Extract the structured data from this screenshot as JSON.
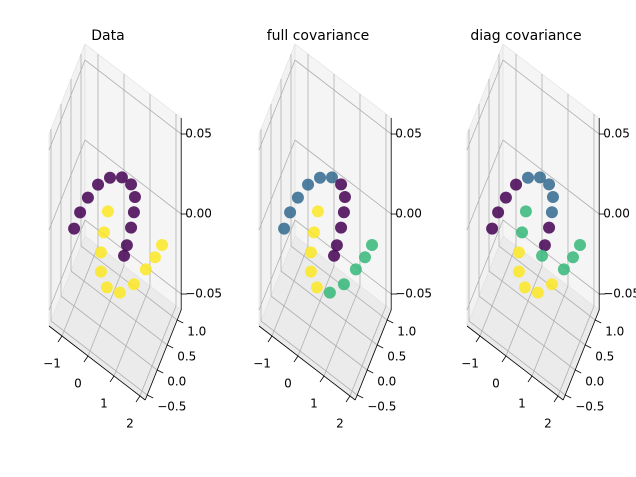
{
  "chart_data": [
    {
      "type": "scatter3d",
      "title": "Data",
      "xlim": [
        -1.5,
        2.2
      ],
      "ylim": [
        -0.6,
        1.2
      ],
      "zlim": [
        -0.06,
        0.06
      ],
      "xticks": [
        {
          "value": -1,
          "label": "−1"
        },
        0,
        1,
        2
      ],
      "yticks": [
        {
          "value": -0.5,
          "label": "−0.5"
        },
        {
          "value": 0,
          "label": "0.0"
        },
        0.5,
        {
          "value": 1,
          "label": "1.0"
        }
      ],
      "zticks": [
        {
          "value": -0.05,
          "label": "−0.05"
        },
        {
          "value": 0,
          "label": "0.00"
        },
        0.05
      ],
      "grid": true,
      "series": [
        {
          "color": "#440154",
          "x": [
            -1.38,
            -1.15,
            -0.85,
            -0.46,
            0,
            0.46,
            0.81,
            0.96,
            0.92,
            0.81,
            0.65,
            0.54
          ],
          "y": [
            0.5,
            0.5,
            0.5,
            0.5,
            0.5,
            0.5,
            0.5,
            0.5,
            0.5,
            0.5,
            0.5,
            0.5
          ],
          "z": [
            -0.032,
            -0.019,
            -0.006,
            0.007,
            0.017,
            0.023,
            0.023,
            0.017,
            0.007,
            -0.004,
            -0.017,
            -0.025
          ]
        },
        {
          "color": "#fde725",
          "x": [
            -0.08,
            -0.23,
            -0.35,
            -0.35,
            -0.12,
            0.38,
            0.92,
            1.38,
            1.73,
            2.0
          ],
          "y": [
            0.5,
            0.5,
            0.5,
            0.5,
            0.5,
            0.5,
            0.5,
            0.5,
            0.5,
            0.5
          ],
          "z": [
            -0.005,
            -0.02,
            -0.034,
            -0.046,
            -0.053,
            -0.05,
            -0.038,
            -0.023,
            -0.011,
            0
          ]
        }
      ]
    },
    {
      "type": "scatter3d",
      "title": "full covariance",
      "xlim": [
        -1.5,
        2.2
      ],
      "ylim": [
        -0.6,
        1.2
      ],
      "zlim": [
        -0.06,
        0.06
      ],
      "xticks": [
        {
          "value": -1,
          "label": "−1"
        },
        0,
        1,
        2
      ],
      "yticks": [
        {
          "value": -0.5,
          "label": "−0.5"
        },
        {
          "value": 0,
          "label": "0.0"
        },
        0.5,
        {
          "value": 1,
          "label": "1.0"
        }
      ],
      "zticks": [
        {
          "value": -0.05,
          "label": "−0.05"
        },
        {
          "value": 0,
          "label": "0.00"
        },
        0.05
      ],
      "grid": true,
      "series": [
        {
          "color": "#31688e",
          "x": [
            -1.38,
            -1.15,
            -0.85,
            -0.46,
            0,
            0.46
          ],
          "y": [
            0.5,
            0.5,
            0.5,
            0.5,
            0.5,
            0.5
          ],
          "z": [
            -0.032,
            -0.019,
            -0.006,
            0.007,
            0.017,
            0.023
          ]
        },
        {
          "color": "#440154",
          "x": [
            0.81,
            0.96,
            0.92,
            0.81,
            0.65,
            0.54
          ],
          "y": [
            0.5,
            0.5,
            0.5,
            0.5,
            0.5,
            0.5
          ],
          "z": [
            0.023,
            0.017,
            0.007,
            -0.004,
            -0.017,
            -0.025
          ]
        },
        {
          "color": "#fde725",
          "x": [
            -0.08,
            -0.23,
            -0.35,
            -0.35,
            -0.12
          ],
          "y": [
            0.5,
            0.5,
            0.5,
            0.5,
            0.5
          ],
          "z": [
            -0.005,
            -0.02,
            -0.034,
            -0.046,
            -0.053
          ]
        },
        {
          "color": "#35b779",
          "x": [
            0.38,
            0.92,
            1.38,
            1.73,
            2.0
          ],
          "y": [
            0.5,
            0.5,
            0.5,
            0.5,
            0.5
          ],
          "z": [
            -0.05,
            -0.038,
            -0.023,
            -0.011,
            0
          ]
        }
      ]
    },
    {
      "type": "scatter3d",
      "title": "diag covariance",
      "xlim": [
        -1.5,
        2.2
      ],
      "ylim": [
        -0.6,
        1.2
      ],
      "zlim": [
        -0.06,
        0.06
      ],
      "xticks": [
        {
          "value": -1,
          "label": "−1"
        },
        0,
        1,
        2
      ],
      "yticks": [
        {
          "value": -0.5,
          "label": "−0.5"
        },
        {
          "value": 0,
          "label": "0.0"
        },
        0.5,
        {
          "value": 1,
          "label": "1.0"
        }
      ],
      "zticks": [
        {
          "value": -0.05,
          "label": "−0.05"
        },
        {
          "value": 0,
          "label": "0.00"
        },
        0.05
      ],
      "grid": true,
      "series": [
        {
          "color": "#440154",
          "x": [
            -1.38,
            -1.15,
            -0.85,
            -0.46,
            0.81,
            0.65
          ],
          "y": [
            0.5,
            0.5,
            0.5,
            0.5,
            0.5,
            0.5
          ],
          "z": [
            -0.032,
            -0.019,
            -0.006,
            0.007,
            -0.004,
            -0.017
          ]
        },
        {
          "color": "#31688e",
          "x": [
            0,
            0.46,
            0.81,
            0.96,
            0.92
          ],
          "y": [
            0.5,
            0.5,
            0.5,
            0.5,
            0.5
          ],
          "z": [
            0.017,
            0.023,
            0.023,
            0.017,
            0.007
          ]
        },
        {
          "color": "#35b779",
          "x": [
            0.54,
            -0.08,
            -0.23,
            1.38,
            1.73,
            2.0
          ],
          "y": [
            0.5,
            0.5,
            0.5,
            0.5,
            0.5,
            0.5
          ],
          "z": [
            -0.025,
            -0.005,
            -0.02,
            -0.023,
            -0.011,
            0
          ]
        },
        {
          "color": "#fde725",
          "x": [
            -0.35,
            -0.35,
            -0.12,
            0.38,
            0.92
          ],
          "y": [
            0.5,
            0.5,
            0.5,
            0.5,
            0.5
          ],
          "z": [
            -0.034,
            -0.046,
            -0.053,
            -0.05,
            -0.038
          ]
        }
      ]
    }
  ]
}
